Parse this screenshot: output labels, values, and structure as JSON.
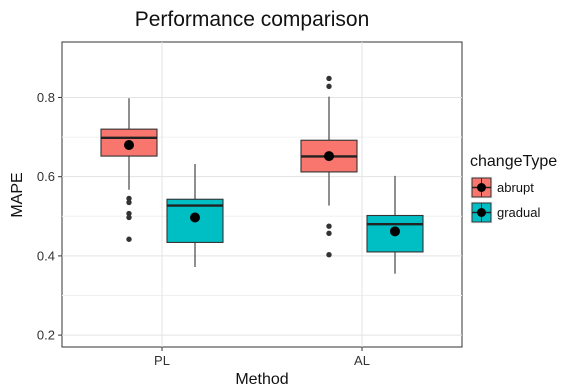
{
  "chart_data": {
    "type": "box",
    "title": "Performance comparison",
    "xlabel": "Method",
    "ylabel": "MAPE",
    "categories": [
      "PL",
      "AL"
    ],
    "ylim": [
      0.17,
      0.94
    ],
    "yticks": [
      0.2,
      0.4,
      0.6,
      0.8
    ],
    "ytick_labels": [
      "0.2",
      "0.4",
      "0.6",
      "0.8"
    ],
    "grid": true,
    "legend": {
      "title": "changeType",
      "position": "right"
    },
    "series": [
      {
        "name": "abrupt",
        "color": "#F8766D",
        "boxes": [
          {
            "category": "PL",
            "q1": 0.652,
            "median": 0.698,
            "q3": 0.72,
            "whisker_low": 0.567,
            "whisker_high": 0.798,
            "mean": 0.68,
            "outliers": [
              0.545,
              0.535,
              0.507,
              0.497,
              0.442
            ]
          },
          {
            "category": "AL",
            "q1": 0.612,
            "median": 0.651,
            "q3": 0.692,
            "whisker_low": 0.527,
            "whisker_high": 0.802,
            "mean": 0.652,
            "outliers": [
              0.848,
              0.828,
              0.475,
              0.457,
              0.403
            ]
          }
        ]
      },
      {
        "name": "gradual",
        "color": "#00BFC4",
        "boxes": [
          {
            "category": "PL",
            "q1": 0.434,
            "median": 0.527,
            "q3": 0.543,
            "whisker_low": 0.372,
            "whisker_high": 0.632,
            "mean": 0.497,
            "outliers": []
          },
          {
            "category": "AL",
            "q1": 0.41,
            "median": 0.48,
            "q3": 0.502,
            "whisker_low": 0.355,
            "whisker_high": 0.602,
            "mean": 0.462,
            "outliers": []
          }
        ]
      }
    ]
  }
}
